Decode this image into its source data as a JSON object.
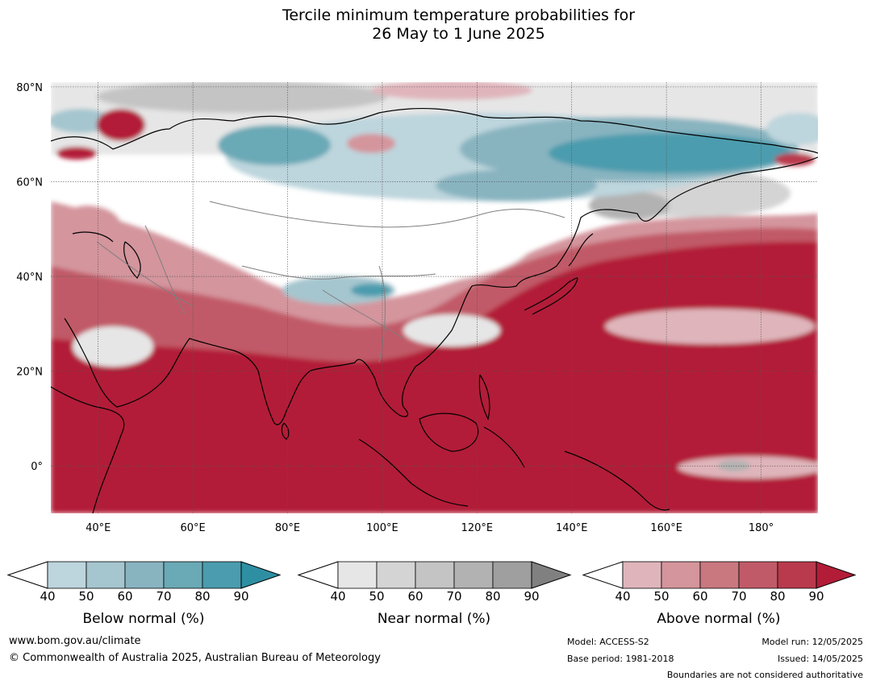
{
  "title": {
    "line1": "Tercile minimum temperature probabilities for",
    "line2": "26 May to 1 June 2025"
  },
  "map": {
    "lon_range": [
      30,
      192
    ],
    "lat_range": [
      -10,
      81
    ],
    "lat_ticks": [
      {
        "value": 80,
        "label": "80°N"
      },
      {
        "value": 60,
        "label": "60°N"
      },
      {
        "value": 40,
        "label": "40°N"
      },
      {
        "value": 20,
        "label": "20°N"
      },
      {
        "value": 0,
        "label": "0°"
      }
    ],
    "lon_ticks": [
      {
        "value": 40,
        "label": "40°E"
      },
      {
        "value": 60,
        "label": "60°E"
      },
      {
        "value": 80,
        "label": "80°E"
      },
      {
        "value": 100,
        "label": "100°E"
      },
      {
        "value": 120,
        "label": "120°E"
      },
      {
        "value": 140,
        "label": "140°E"
      },
      {
        "value": 160,
        "label": "160°E"
      },
      {
        "value": 180,
        "label": "180°"
      }
    ],
    "colors": {
      "below": [
        "#bdd5dd",
        "#a5c6cf",
        "#88b4c0",
        "#6aa9b6",
        "#4b9cae",
        "#2e8fa3"
      ],
      "near": [
        "#e6e6e6",
        "#d4d4d4",
        "#c4c4c4",
        "#b2b2b2",
        "#9f9f9f",
        "#808080"
      ],
      "above": [
        "#dfb5bb",
        "#d4959d",
        "#c97880",
        "#c15a68",
        "#b93a4d",
        "#b21c37"
      ]
    }
  },
  "legend": {
    "ticks": [
      "40",
      "50",
      "60",
      "70",
      "80",
      "90"
    ],
    "below_label": "Below normal (%)",
    "near_label": "Near normal (%)",
    "above_label": "Above normal (%)"
  },
  "footer": {
    "website": "www.bom.gov.au/climate",
    "copyright": "© Commonwealth of Australia 2025, Australian Bureau of Meteorology",
    "model": "Model: ACCESS-S2",
    "base_period": "Base period: 1981-2018",
    "model_run": "Model run: 12/05/2025",
    "issued": "Issued: 14/05/2025",
    "disclaimer": "Boundaries are not considered authoritative"
  }
}
